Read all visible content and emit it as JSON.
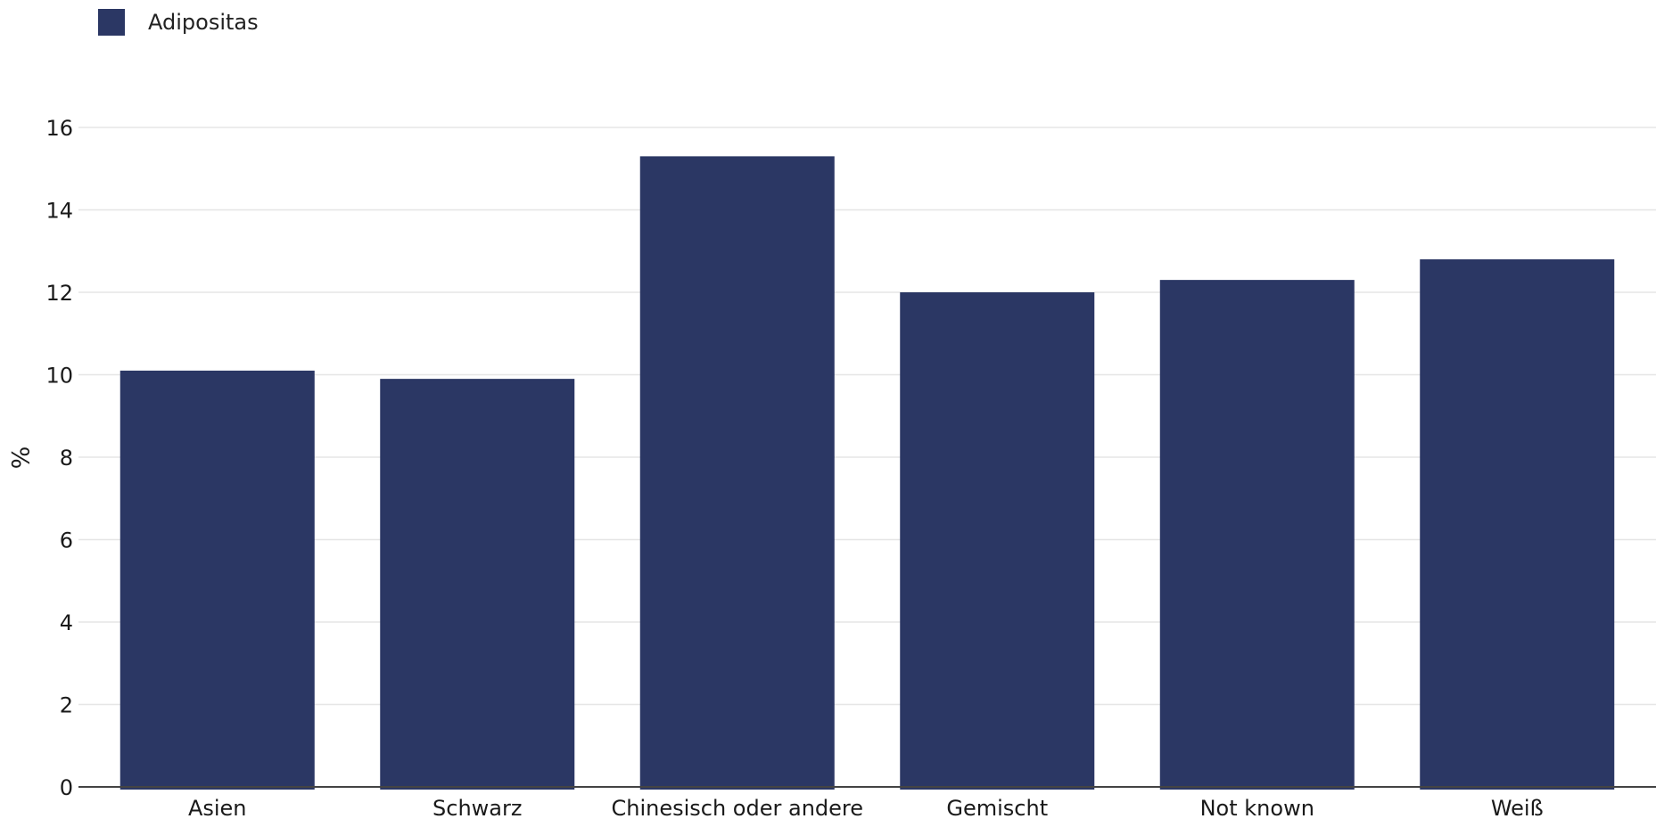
{
  "legend": {
    "label": "Adipositas",
    "color": "#2b3764"
  },
  "chart_data": {
    "type": "bar",
    "categories": [
      "Asien",
      "Schwarz",
      "Chinesisch oder andere",
      "Gemischt",
      "Not known",
      "Weiß"
    ],
    "series": [
      {
        "name": "Adipositas",
        "values": [
          10.1,
          9.9,
          15.3,
          12.0,
          12.3,
          12.8
        ],
        "color": "#2b3764"
      }
    ],
    "ylabel": "%",
    "xlabel": "",
    "ylim": [
      0,
      16
    ],
    "yticks": [
      0,
      2,
      4,
      6,
      8,
      10,
      12,
      14,
      16
    ],
    "grid": true,
    "legend_position": "top-left"
  }
}
